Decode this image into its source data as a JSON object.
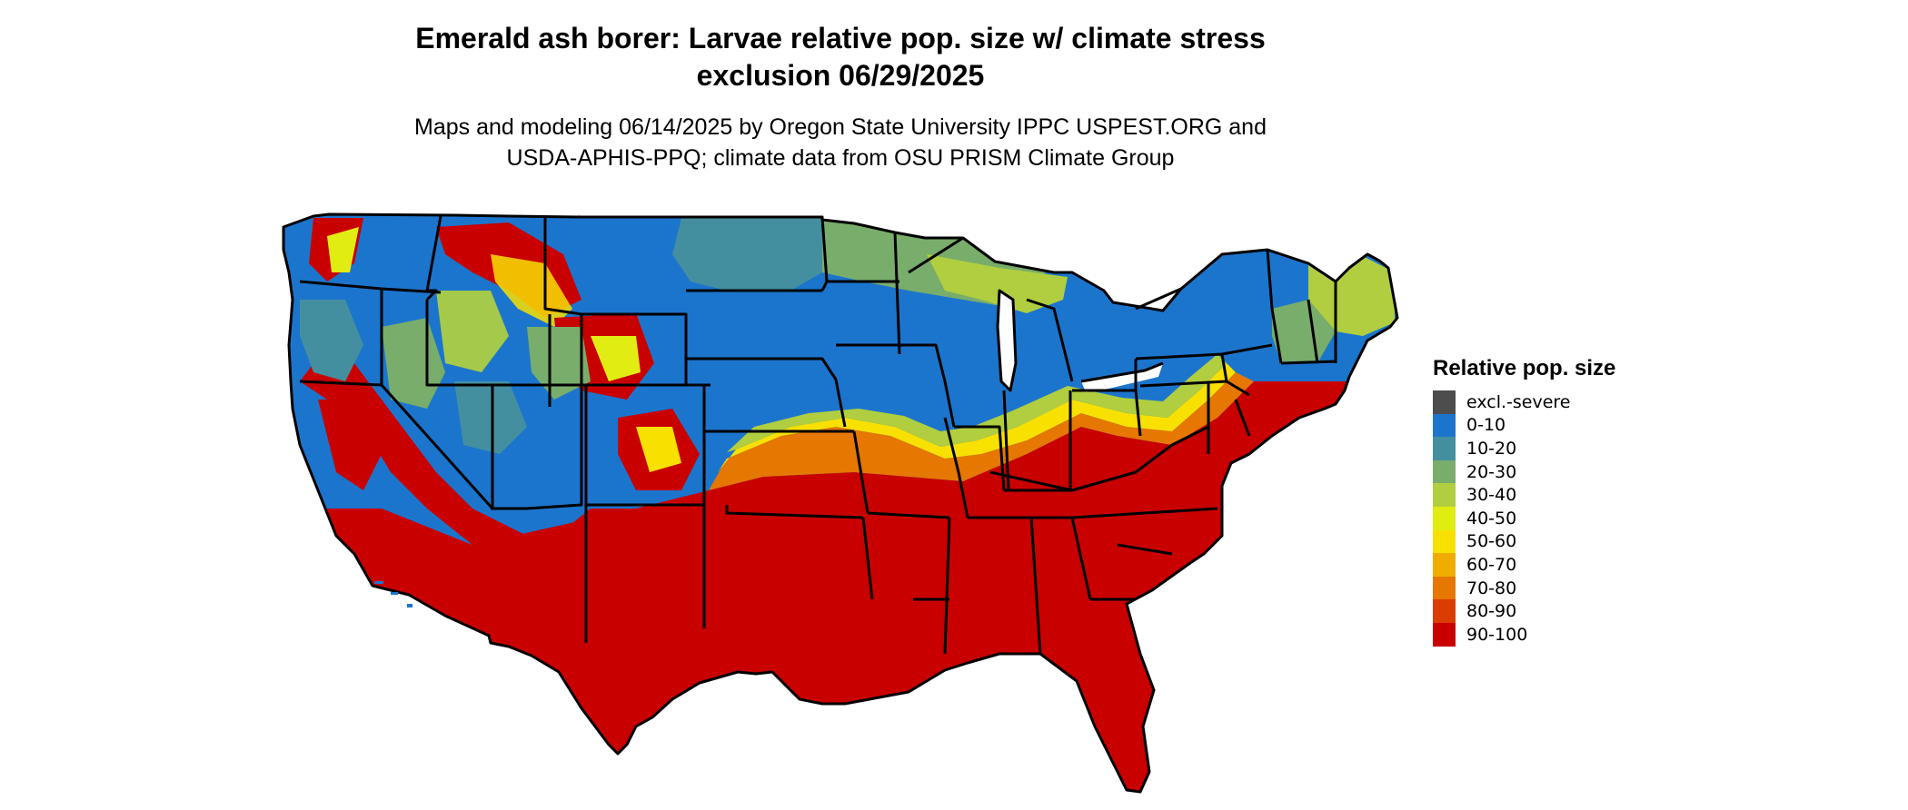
{
  "title_line1": "Emerald ash borer: Larvae relative pop. size w/ climate stress",
  "title_line2": "exclusion 06/29/2025",
  "subtitle_line1": "Maps and modeling 06/14/2025 by Oregon State University IPPC USPEST.ORG and",
  "subtitle_line2": "USDA-APHIS-PPQ; climate data from OSU PRISM Climate Group",
  "legend": {
    "title": "Relative pop. size",
    "items": [
      {
        "label": "excl.-severe",
        "color": "#4d4d4d"
      },
      {
        "label": "0-10",
        "color": "#1c75cd"
      },
      {
        "label": "10-20",
        "color": "#448f9f"
      },
      {
        "label": "20-30",
        "color": "#79ad6b"
      },
      {
        "label": "30-40",
        "color": "#b0ce3f"
      },
      {
        "label": "40-50",
        "color": "#e0ec12"
      },
      {
        "label": "50-60",
        "color": "#f8e100"
      },
      {
        "label": "60-70",
        "color": "#f0ad00"
      },
      {
        "label": "70-80",
        "color": "#e67700"
      },
      {
        "label": "80-90",
        "color": "#d93e00"
      },
      {
        "label": "90-100",
        "color": "#c90000"
      }
    ]
  }
}
